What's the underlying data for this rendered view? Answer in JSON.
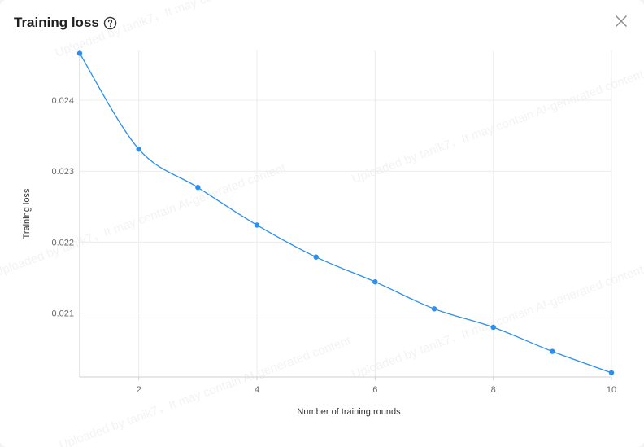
{
  "dialog": {
    "title": "Training loss",
    "help_icon": "question-circle-icon",
    "close_icon": "close-icon"
  },
  "watermark": {
    "text": "Uploaded by tanik7，It may contain AI-generated content"
  },
  "colors": {
    "series": "#2b8ff0",
    "grid": "#ececec",
    "axis": "#cfcfcf",
    "tick_text": "#6b6b6b",
    "label_text": "#333333"
  },
  "chart_data": {
    "type": "line",
    "title": "",
    "xlabel": "Number of training rounds",
    "ylabel": "Training loss",
    "x": [
      1,
      2,
      3,
      4,
      5,
      6,
      7,
      8,
      9,
      10
    ],
    "series": [
      {
        "values": [
          0.02466,
          0.02331,
          0.02277,
          0.02224,
          0.02179,
          0.02144,
          0.02106,
          0.0208,
          0.02046,
          0.02016
        ]
      }
    ],
    "xlim": [
      1,
      10
    ],
    "ylim": [
      0.0201,
      0.0247
    ],
    "x_ticks": [
      2,
      4,
      6,
      8,
      10
    ],
    "x_tick_labels": [
      "2",
      "4",
      "6",
      "8",
      "10"
    ],
    "y_ticks": [
      0.021,
      0.022,
      0.023,
      0.024
    ],
    "y_tick_labels": [
      "0.021",
      "0.022",
      "0.023",
      "0.024"
    ],
    "grid": true,
    "smooth": true,
    "legend": "none"
  }
}
